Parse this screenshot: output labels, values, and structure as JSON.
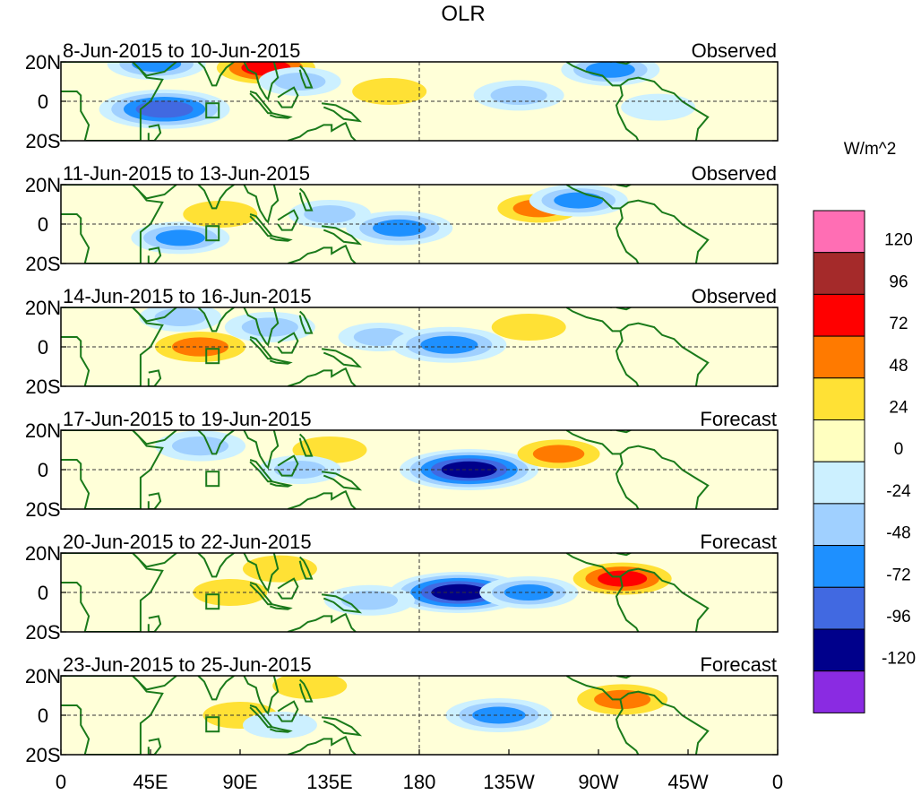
{
  "chart_data": {
    "type": "heatmap",
    "title": "OLR",
    "units": "W/m^2",
    "x_ticks": [
      "0",
      "45E",
      "90E",
      "135E",
      "180",
      "135W",
      "90W",
      "45W",
      "0"
    ],
    "x_range_deg_east": [
      0,
      360
    ],
    "y_ticks": [
      "20N",
      "0",
      "20S"
    ],
    "y_range_deg_lat": [
      -20,
      20
    ],
    "panels": [
      {
        "period": "8-Jun-2015 to 10-Jun-2015",
        "kind": "Observed"
      },
      {
        "period": "11-Jun-2015 to 13-Jun-2015",
        "kind": "Observed"
      },
      {
        "period": "14-Jun-2015 to 16-Jun-2015",
        "kind": "Observed"
      },
      {
        "period": "17-Jun-2015 to 19-Jun-2015",
        "kind": "Forecast"
      },
      {
        "period": "20-Jun-2015 to 22-Jun-2015",
        "kind": "Forecast"
      },
      {
        "period": "23-Jun-2015 to 25-Jun-2015",
        "kind": "Forecast"
      }
    ],
    "colorbar": {
      "labels": [
        "120",
        "96",
        "72",
        "48",
        "24",
        "0",
        "-24",
        "-48",
        "-72",
        "-96",
        "-120"
      ],
      "colors": [
        "#ff6eb4",
        "#a52a2a",
        "#ff0000",
        "#ff7a00",
        "#ffe135",
        "#ffffc0",
        "#ccf0ff",
        "#a0d0ff",
        "#1e90ff",
        "#4169e1",
        "#00008b",
        "#8a2be2"
      ]
    },
    "anomalies": [
      {
        "panel": 0,
        "lon": 52,
        "lat": -4,
        "value": -100
      },
      {
        "panel": 0,
        "lon": 48,
        "lat": 19,
        "value": -60
      },
      {
        "panel": 0,
        "lon": 103,
        "lat": 17,
        "value": 60
      },
      {
        "panel": 0,
        "lon": 120,
        "lat": 10,
        "value": -40
      },
      {
        "panel": 0,
        "lon": 165,
        "lat": 5,
        "value": 30
      },
      {
        "panel": 0,
        "lon": 230,
        "lat": 3,
        "value": -50
      },
      {
        "panel": 0,
        "lon": 276,
        "lat": 16,
        "value": -60
      },
      {
        "panel": 0,
        "lon": 300,
        "lat": -3,
        "value": -30
      },
      {
        "panel": 1,
        "lon": 60,
        "lat": -7,
        "value": -60
      },
      {
        "panel": 1,
        "lon": 135,
        "lat": 5,
        "value": -40
      },
      {
        "panel": 1,
        "lon": 170,
        "lat": -2,
        "value": -70
      },
      {
        "panel": 1,
        "lon": 240,
        "lat": 8,
        "value": 40
      },
      {
        "panel": 1,
        "lon": 260,
        "lat": 12,
        "value": -60
      },
      {
        "panel": 1,
        "lon": 80,
        "lat": 5,
        "value": 30
      },
      {
        "panel": 2,
        "lon": 105,
        "lat": 10,
        "value": -50
      },
      {
        "panel": 2,
        "lon": 160,
        "lat": 5,
        "value": -40
      },
      {
        "panel": 2,
        "lon": 195,
        "lat": 1,
        "value": -80
      },
      {
        "panel": 2,
        "lon": 235,
        "lat": 10,
        "value": 30
      },
      {
        "panel": 2,
        "lon": 70,
        "lat": 0,
        "value": 50
      },
      {
        "panel": 2,
        "lon": 60,
        "lat": 15,
        "value": -40
      },
      {
        "panel": 3,
        "lon": 205,
        "lat": 0,
        "value": -110
      },
      {
        "panel": 3,
        "lon": 250,
        "lat": 8,
        "value": 40
      },
      {
        "panel": 3,
        "lon": 135,
        "lat": 10,
        "value": 30
      },
      {
        "panel": 3,
        "lon": 70,
        "lat": 12,
        "value": -50
      },
      {
        "panel": 3,
        "lon": 120,
        "lat": 0,
        "value": -40
      },
      {
        "panel": 4,
        "lon": 200,
        "lat": 0,
        "value": -110
      },
      {
        "panel": 4,
        "lon": 235,
        "lat": 0,
        "value": -60
      },
      {
        "panel": 4,
        "lon": 282,
        "lat": 7,
        "value": 60
      },
      {
        "panel": 4,
        "lon": 110,
        "lat": 12,
        "value": 30
      },
      {
        "panel": 4,
        "lon": 85,
        "lat": 0,
        "value": 30
      },
      {
        "panel": 4,
        "lon": 155,
        "lat": -4,
        "value": -50
      },
      {
        "panel": 5,
        "lon": 220,
        "lat": 0,
        "value": -70
      },
      {
        "panel": 5,
        "lon": 282,
        "lat": 8,
        "value": 50
      },
      {
        "panel": 5,
        "lon": 125,
        "lat": 15,
        "value": 30
      },
      {
        "panel": 5,
        "lon": 90,
        "lat": 0,
        "value": 30
      },
      {
        "panel": 5,
        "lon": 110,
        "lat": -5,
        "value": -30
      }
    ]
  }
}
